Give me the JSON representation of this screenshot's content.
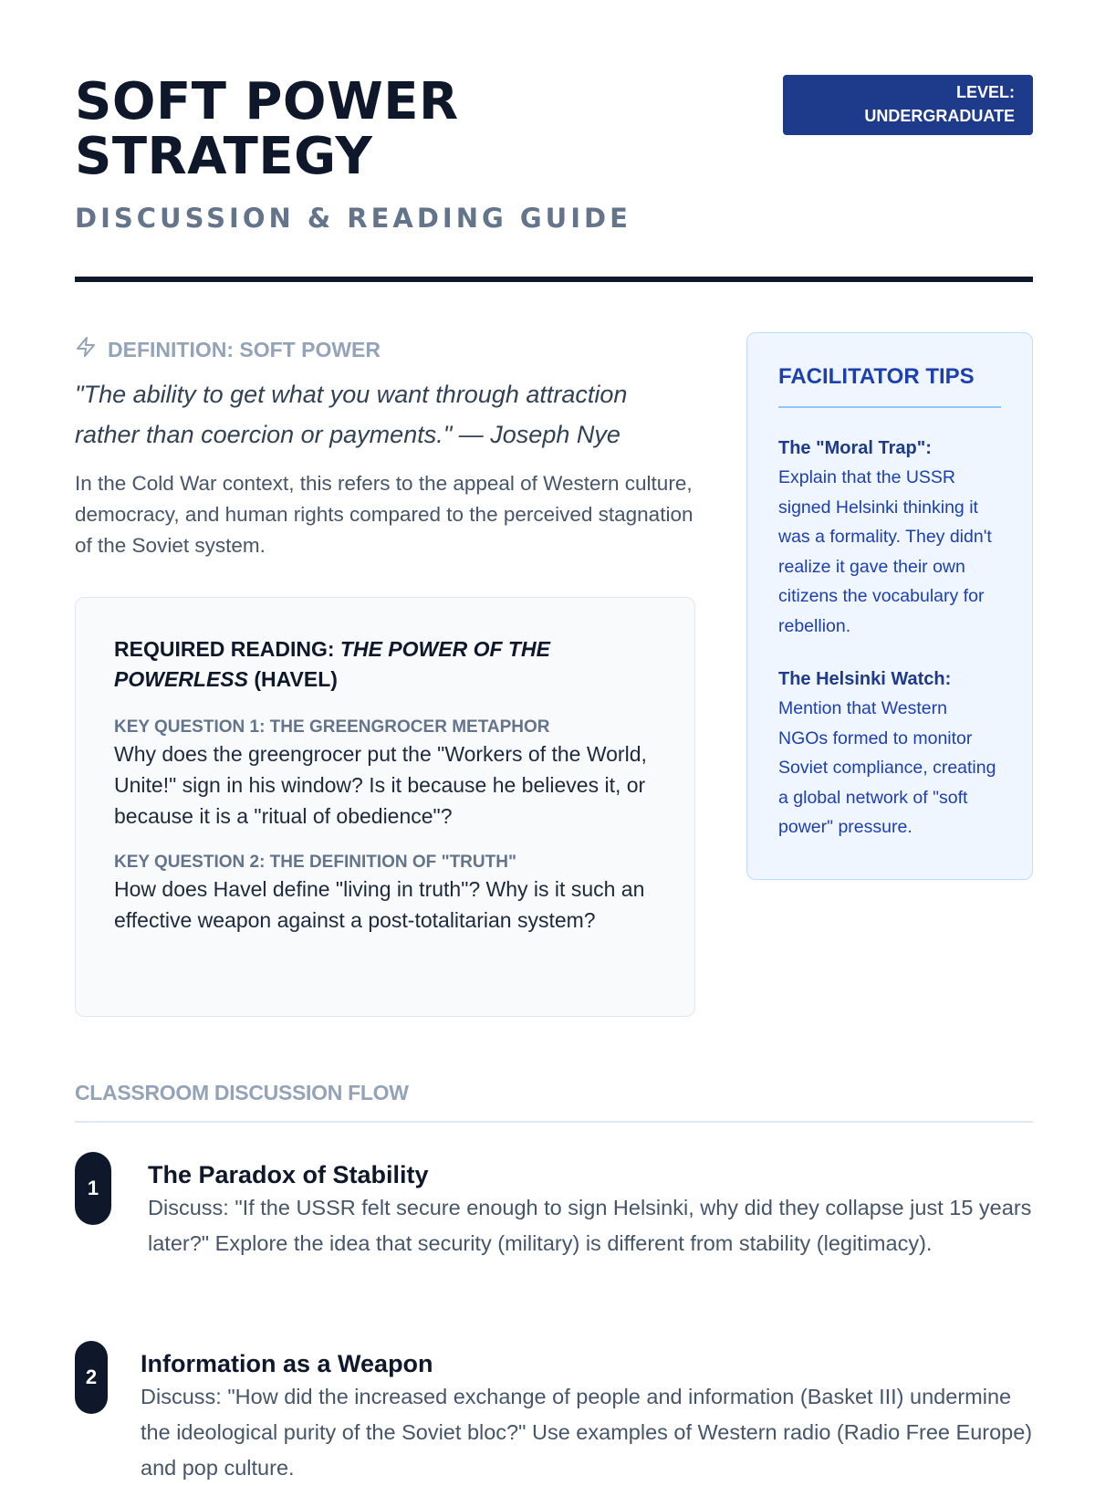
{
  "header": {
    "title_line1": "SOFT POWER",
    "title_line2": "STRATEGY",
    "subtitle": "DISCUSSION & READING GUIDE",
    "badge_line1": "LEVEL:",
    "badge_line2": "UNDERGRADUATE"
  },
  "definition": {
    "icon": "lightning-icon",
    "heading": "DEFINITION: SOFT POWER",
    "quote": "\"The ability to get what you want through attraction rather than coercion or payments.\" — Joseph Nye",
    "context": "In the Cold War context, this refers to the appeal of Western culture, democracy, and human rights compared to the perceived stagnation of the Soviet system."
  },
  "reading": {
    "prefix": "REQUIRED READING: ",
    "work": "THE POWER OF THE POWERLESS",
    "suffix": " (HAVEL)",
    "questions": [
      {
        "label": "KEY QUESTION 1: THE GREENGROCER METAPHOR",
        "text": "Why does the greengrocer put the \"Workers of the World, Unite!\" sign in his window? Is it because he believes it, or because it is a \"ritual of obedience\"?"
      },
      {
        "label": "KEY QUESTION 2: THE DEFINITION OF \"TRUTH\"",
        "text": "How does Havel define \"living in truth\"? Why is it such an effective weapon against a post-totalitarian system?"
      }
    ]
  },
  "tips": {
    "heading": "FACILITATOR TIPS",
    "items": [
      {
        "title": "The \"Moral Trap\":",
        "body": "Explain that the USSR signed Helsinki thinking it was a formality. They didn't realize it gave their own citizens the vocabulary for rebellion."
      },
      {
        "title": "The Helsinki Watch:",
        "body": "Mention that Western NGOs formed to monitor Soviet compliance, creating a global network of \"soft power\" pressure."
      }
    ]
  },
  "flow": {
    "heading": "CLASSROOM DISCUSSION FLOW",
    "steps": [
      {
        "number": "1",
        "title": "The Paradox of Stability",
        "body": "Discuss: \"If the USSR felt secure enough to sign Helsinki, why did they collapse just 15 years later?\" Explore the idea that security (military) is different from stability (legitimacy)."
      },
      {
        "number": "2",
        "title": "Information as a Weapon",
        "body": "Discuss: \"How did the increased exchange of people and information (Basket III) undermine the ideological purity of the Soviet bloc?\" Use examples of Western radio (Radio Free Europe) and pop culture."
      }
    ]
  },
  "colors": {
    "navy": "#0f172a",
    "badge": "#1e3a8a",
    "tips_bg": "#eff6ff",
    "muted": "#94a3b8"
  }
}
